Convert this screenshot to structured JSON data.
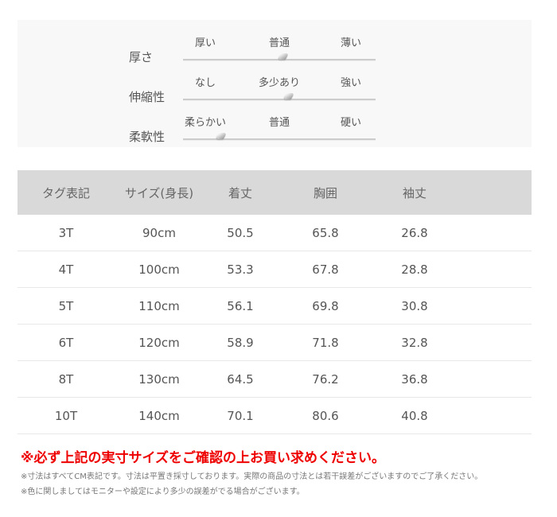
{
  "attributes": [
    {
      "label": "厚さ",
      "options": [
        "厚い",
        "普通",
        "薄い"
      ],
      "level": 0.52
    },
    {
      "label": "伸縮性",
      "options": [
        "なし",
        "多少あり",
        "強い"
      ],
      "level": 0.55
    },
    {
      "label": "柔軟性",
      "options": [
        "柔らかい",
        "普通",
        "硬い"
      ],
      "level": 0.2
    }
  ],
  "table": {
    "headers": [
      "タグ表記",
      "サイズ(身長)",
      "着丈",
      "胸囲",
      "袖丈"
    ],
    "rows": [
      [
        "3T",
        "90cm",
        "50.5",
        "65.8",
        "26.8"
      ],
      [
        "4T",
        "100cm",
        "53.3",
        "67.8",
        "28.8"
      ],
      [
        "5T",
        "110cm",
        "56.1",
        "69.8",
        "30.8"
      ],
      [
        "6T",
        "120cm",
        "58.9",
        "71.8",
        "32.8"
      ],
      [
        "8T",
        "130cm",
        "64.5",
        "76.2",
        "36.8"
      ],
      [
        "10T",
        "140cm",
        "70.1",
        "80.6",
        "40.8"
      ]
    ]
  },
  "notice": "※必ず上記の実寸サイズをご確認の上お買い求めください。",
  "notes": [
    "※寸法はすべてCM表記です。寸法は平置き採寸しております。実際の商品の寸法とは若干誤差がございますのでご了承ください。",
    "※色に関しましてはモニターや設定により多少の誤差がでる場合がございます。"
  ],
  "colors": {
    "notice": "#e00000",
    "header_bg": "#d9d9d9",
    "panel_bg": "#f8f8f8"
  }
}
